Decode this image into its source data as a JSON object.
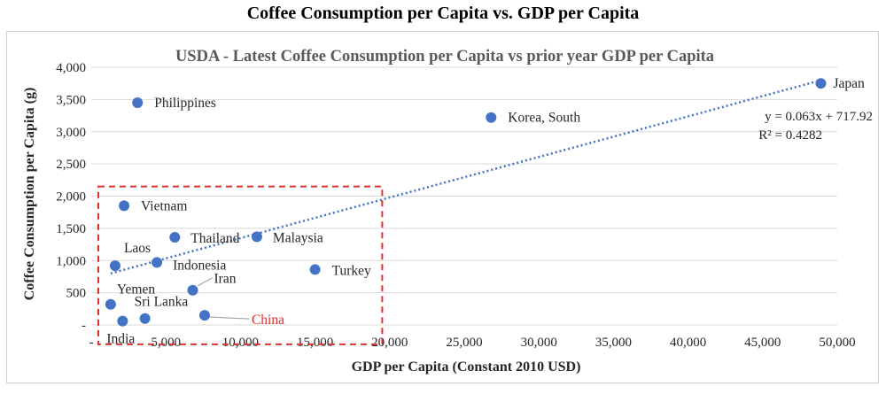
{
  "title": "Coffee Consumption per Capita vs. GDP per Capita",
  "chart_data": {
    "type": "scatter",
    "title": "USDA - Latest Coffee Consumption per Capita vs prior year GDP per Capita",
    "xlabel": "GDP per Capita (Constant 2010 USD)",
    "ylabel": "Coffee Consumption per Capita (g)",
    "xlim": [
      0,
      50000
    ],
    "ylim": [
      0,
      4000
    ],
    "x_ticks": [
      "-",
      "5,000",
      "10,000",
      "15,000",
      "20,000",
      "25,000",
      "30,000",
      "35,000",
      "40,000",
      "45,000",
      "50,000"
    ],
    "y_ticks": [
      "-",
      "500",
      "1,000",
      "1,500",
      "2,000",
      "2,500",
      "3,000",
      "3,500",
      "4,000"
    ],
    "grid": "horizontal",
    "marker_color": "#4472c4",
    "highlight_color": "#e03030",
    "points": [
      {
        "label": "Japan",
        "x": 48900,
        "y": 3750
      },
      {
        "label": "Philippines",
        "x": 3100,
        "y": 3450
      },
      {
        "label": "Korea, South",
        "x": 26800,
        "y": 3220
      },
      {
        "label": "Vietnam",
        "x": 2200,
        "y": 1850
      },
      {
        "label": "Thailand",
        "x": 5600,
        "y": 1360
      },
      {
        "label": "Malaysia",
        "x": 11100,
        "y": 1370
      },
      {
        "label": "Laos",
        "x": 1600,
        "y": 920
      },
      {
        "label": "Indonesia",
        "x": 4400,
        "y": 970
      },
      {
        "label": "Turkey",
        "x": 15000,
        "y": 860
      },
      {
        "label": "Iran",
        "x": 6800,
        "y": 540
      },
      {
        "label": "Yemen",
        "x": 1300,
        "y": 320
      },
      {
        "label": "Sri Lanka",
        "x": 3600,
        "y": 100
      },
      {
        "label": "India",
        "x": 2100,
        "y": 60
      },
      {
        "label": "China",
        "x": 7600,
        "y": 150,
        "highlight": true
      }
    ],
    "trendline": {
      "type": "linear",
      "x_range": [
        1300,
        48900
      ],
      "equation": "y = 0.063x + 717.92",
      "r_squared": "R² = 0.4282",
      "color": "#4472c4"
    },
    "highlight_box": {
      "x_range": [
        0,
        19500
      ],
      "y_range": [
        -300,
        2150
      ],
      "color": "#e03030"
    }
  }
}
